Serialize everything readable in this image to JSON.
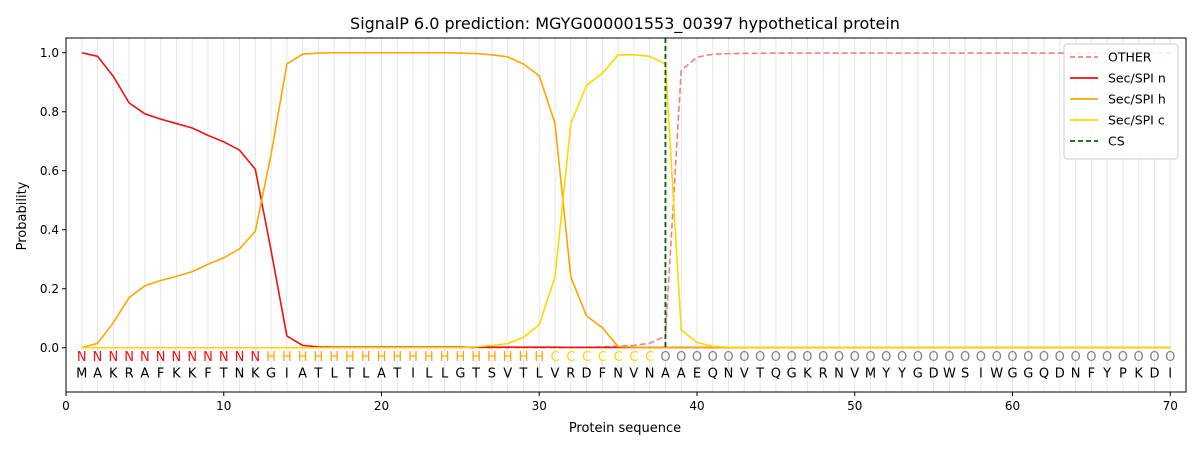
{
  "chart_data": {
    "type": "line",
    "title": "SignalP 6.0 prediction: MGYG000001553_00397 hypothetical protein",
    "xlabel": "Protein sequence",
    "ylabel": "Probability",
    "xlim": [
      0,
      71
    ],
    "ylim": [
      -0.15,
      1.05
    ],
    "x_ticks": [
      0,
      10,
      20,
      30,
      40,
      50,
      60,
      70
    ],
    "y_ticks": [
      0.0,
      0.2,
      0.4,
      0.6,
      0.8,
      1.0
    ],
    "x_tick_labels": [
      "0",
      "10",
      "20",
      "30",
      "40",
      "50",
      "60",
      "70"
    ],
    "y_tick_labels": [
      "0.0",
      "0.2",
      "0.4",
      "0.6",
      "0.8",
      "1.0"
    ],
    "grid": "vertical lines at each residue",
    "legend_position": "top-right",
    "sequence": "MAKRAFKKFTNKGIATLTLATILLGTSVTLVRDFNVNAAEQNVTQGKRNVMYYGDWSIWGGQDNFYPKDI",
    "labels": "NNNNNNNNNNNNHHHHHHHHHHHHHHHHHHCCCCCCCOOOOOOOOOOOOOOOOOOOOOOOOOOOOOOOOO",
    "label_colors": {
      "N": "#ee1111",
      "H": "#ffa500",
      "C": "#ffd700",
      "O": "#808080"
    },
    "cs_position": 38,
    "series": [
      {
        "name": "OTHER",
        "color": "#f08080",
        "dash": "dashed",
        "x": [
          1,
          2,
          3,
          4,
          5,
          6,
          7,
          8,
          9,
          10,
          11,
          12,
          13,
          14,
          15,
          16,
          17,
          18,
          19,
          20,
          21,
          22,
          23,
          24,
          25,
          26,
          27,
          28,
          29,
          30,
          31,
          32,
          33,
          34,
          35,
          36,
          37,
          38,
          39,
          40,
          41,
          42,
          43,
          44,
          45,
          46,
          47,
          48,
          49,
          50,
          51,
          52,
          53,
          54,
          55,
          56,
          57,
          58,
          59,
          60,
          61,
          62,
          63,
          64,
          65,
          66,
          67,
          68,
          69,
          70
        ],
        "values": [
          0,
          0,
          0,
          0,
          0,
          0,
          0,
          0,
          0,
          0,
          0,
          0,
          0,
          0,
          0,
          0,
          0,
          0,
          0,
          0,
          0,
          0,
          0,
          0,
          0,
          0,
          0,
          0,
          0,
          0,
          0,
          0.001,
          0.002,
          0.003,
          0.005,
          0.008,
          0.015,
          0.04,
          0.94,
          0.985,
          0.995,
          0.997,
          0.998,
          0.998,
          0.999,
          0.999,
          0.999,
          0.999,
          0.999,
          0.999,
          0.999,
          0.999,
          0.999,
          0.999,
          0.999,
          0.999,
          0.999,
          0.999,
          0.999,
          0.999,
          0.999,
          0.999,
          0.999,
          0.999,
          0.999,
          0.999,
          0.999,
          0.999,
          0.999,
          0.999
        ]
      },
      {
        "name": "Sec/SPI n",
        "color": "#ee1111",
        "dash": "solid",
        "x": [
          1,
          2,
          3,
          4,
          5,
          6,
          7,
          8,
          9,
          10,
          11,
          12,
          13,
          14,
          15,
          16,
          17,
          18,
          19,
          20,
          21,
          22,
          23,
          24,
          25,
          26,
          27,
          28,
          29,
          30,
          31,
          32,
          33,
          34,
          35,
          36,
          37,
          38,
          39,
          40,
          41,
          42,
          43,
          44,
          45,
          46,
          47,
          48,
          49,
          50,
          51,
          52,
          53,
          54,
          55,
          56,
          57,
          58,
          59,
          60,
          61,
          62,
          63,
          64,
          65,
          66,
          67,
          68,
          69,
          70
        ],
        "values": [
          1.0,
          0.988,
          0.92,
          0.83,
          0.793,
          0.775,
          0.76,
          0.745,
          0.72,
          0.698,
          0.67,
          0.605,
          0.33,
          0.04,
          0.008,
          0.003,
          0.002,
          0.002,
          0.002,
          0.002,
          0.002,
          0.002,
          0.002,
          0.002,
          0.002,
          0.002,
          0.002,
          0.002,
          0.002,
          0.002,
          0.002,
          0.001,
          0.001,
          0.001,
          0.001,
          0.001,
          0.001,
          0.001,
          0.001,
          0.001,
          0.001,
          0.001,
          0.001,
          0.001,
          0.001,
          0.001,
          0.001,
          0.001,
          0.001,
          0.001,
          0.001,
          0.001,
          0.001,
          0.001,
          0.001,
          0.001,
          0.001,
          0.001,
          0.001,
          0.001,
          0.001,
          0.001,
          0.001,
          0.001,
          0.001,
          0.001,
          0.001,
          0.001,
          0.001,
          0.001
        ]
      },
      {
        "name": "Sec/SPI h",
        "color": "#ffa500",
        "dash": "solid",
        "x": [
          1,
          2,
          3,
          4,
          5,
          6,
          7,
          8,
          9,
          10,
          11,
          12,
          13,
          14,
          15,
          16,
          17,
          18,
          19,
          20,
          21,
          22,
          23,
          24,
          25,
          26,
          27,
          28,
          29,
          30,
          31,
          32,
          33,
          34,
          35,
          36,
          37,
          38,
          39,
          40,
          41,
          42,
          43,
          44,
          45,
          46,
          47,
          48,
          49,
          50,
          51,
          52,
          53,
          54,
          55,
          56,
          57,
          58,
          59,
          60,
          61,
          62,
          63,
          64,
          65,
          66,
          67,
          68,
          69,
          70
        ],
        "values": [
          0,
          0.015,
          0.085,
          0.17,
          0.21,
          0.228,
          0.242,
          0.258,
          0.283,
          0.305,
          0.335,
          0.395,
          0.655,
          0.962,
          0.995,
          0.999,
          1.0,
          1.0,
          1.0,
          1.0,
          1.0,
          1.0,
          1.0,
          1.0,
          0.999,
          0.997,
          0.993,
          0.986,
          0.962,
          0.922,
          0.76,
          0.24,
          0.108,
          0.068,
          0.004,
          0.002,
          0.001,
          0.001,
          0.001,
          0.001,
          0.001,
          0.001,
          0.001,
          0.001,
          0.001,
          0.001,
          0.001,
          0.001,
          0.001,
          0.001,
          0.001,
          0.001,
          0.001,
          0.001,
          0.001,
          0.001,
          0.001,
          0.001,
          0.001,
          0.001,
          0.001,
          0.001,
          0.001,
          0.001,
          0.001,
          0.001,
          0.001,
          0.001,
          0.001,
          0.001
        ]
      },
      {
        "name": "Sec/SPI c",
        "color": "#ffd700",
        "dash": "solid",
        "x": [
          1,
          2,
          3,
          4,
          5,
          6,
          7,
          8,
          9,
          10,
          11,
          12,
          13,
          14,
          15,
          16,
          17,
          18,
          19,
          20,
          21,
          22,
          23,
          24,
          25,
          26,
          27,
          28,
          29,
          30,
          31,
          32,
          33,
          34,
          35,
          36,
          37,
          38,
          39,
          40,
          41,
          42,
          43,
          44,
          45,
          46,
          47,
          48,
          49,
          50,
          51,
          52,
          53,
          54,
          55,
          56,
          57,
          58,
          59,
          60,
          61,
          62,
          63,
          64,
          65,
          66,
          67,
          68,
          69,
          70
        ],
        "values": [
          0,
          0,
          0,
          0,
          0,
          0,
          0,
          0,
          0,
          0,
          0,
          0,
          0,
          0,
          0,
          0,
          0,
          0,
          0,
          0,
          0,
          0,
          0,
          0,
          0,
          0.003,
          0.008,
          0.014,
          0.035,
          0.078,
          0.24,
          0.76,
          0.89,
          0.93,
          0.993,
          0.993,
          0.988,
          0.962,
          0.06,
          0.018,
          0.005,
          0.002,
          0.001,
          0.001,
          0.001,
          0.001,
          0.001,
          0.001,
          0.001,
          0.001,
          0.001,
          0.001,
          0.001,
          0.001,
          0.001,
          0.001,
          0.001,
          0.001,
          0.001,
          0.001,
          0.001,
          0.001,
          0.001,
          0.001,
          0.001,
          0.001,
          0.001,
          0.001,
          0.001,
          0.001
        ]
      }
    ],
    "legend": [
      {
        "label": "OTHER",
        "color": "#f08080",
        "dash": "dashed"
      },
      {
        "label": "Sec/SPI n",
        "color": "#ee1111",
        "dash": "solid"
      },
      {
        "label": "Sec/SPI h",
        "color": "#ffa500",
        "dash": "solid"
      },
      {
        "label": "Sec/SPI c",
        "color": "#ffd700",
        "dash": "solid"
      },
      {
        "label": "CS",
        "color": "#006400",
        "dash": "dashed"
      }
    ]
  }
}
